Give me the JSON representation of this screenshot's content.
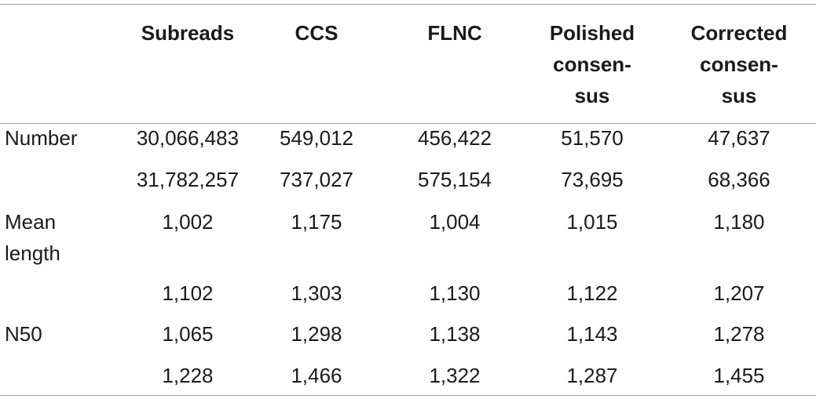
{
  "table": {
    "headers": [
      "",
      "Subreads",
      "CCS",
      "FLNC",
      [
        "Polished",
        "consen-",
        "sus"
      ],
      [
        "Corrected",
        "consen-",
        "sus"
      ]
    ],
    "rows": [
      {
        "label": [
          "Number"
        ],
        "cells": [
          "30,066,483",
          "549,012",
          "456,422",
          "51,570",
          "47,637"
        ]
      },
      {
        "label": [
          ""
        ],
        "cells": [
          "31,782,257",
          "737,027",
          "575,154",
          "73,695",
          "68,366"
        ]
      },
      {
        "label": [
          "Mean",
          "length"
        ],
        "cells": [
          "1,002",
          "1,175",
          "1,004",
          "1,015",
          "1,180"
        ]
      },
      {
        "label": [
          ""
        ],
        "cells": [
          "1,102",
          "1,303",
          "1,130",
          "1,122",
          "1,207"
        ]
      },
      {
        "label": [
          "N50"
        ],
        "cells": [
          "1,065",
          "1,298",
          "1,138",
          "1,143",
          "1,278"
        ]
      },
      {
        "label": [
          ""
        ],
        "cells": [
          "1,228",
          "1,466",
          "1,322",
          "1,287",
          "1,455"
        ]
      }
    ]
  }
}
